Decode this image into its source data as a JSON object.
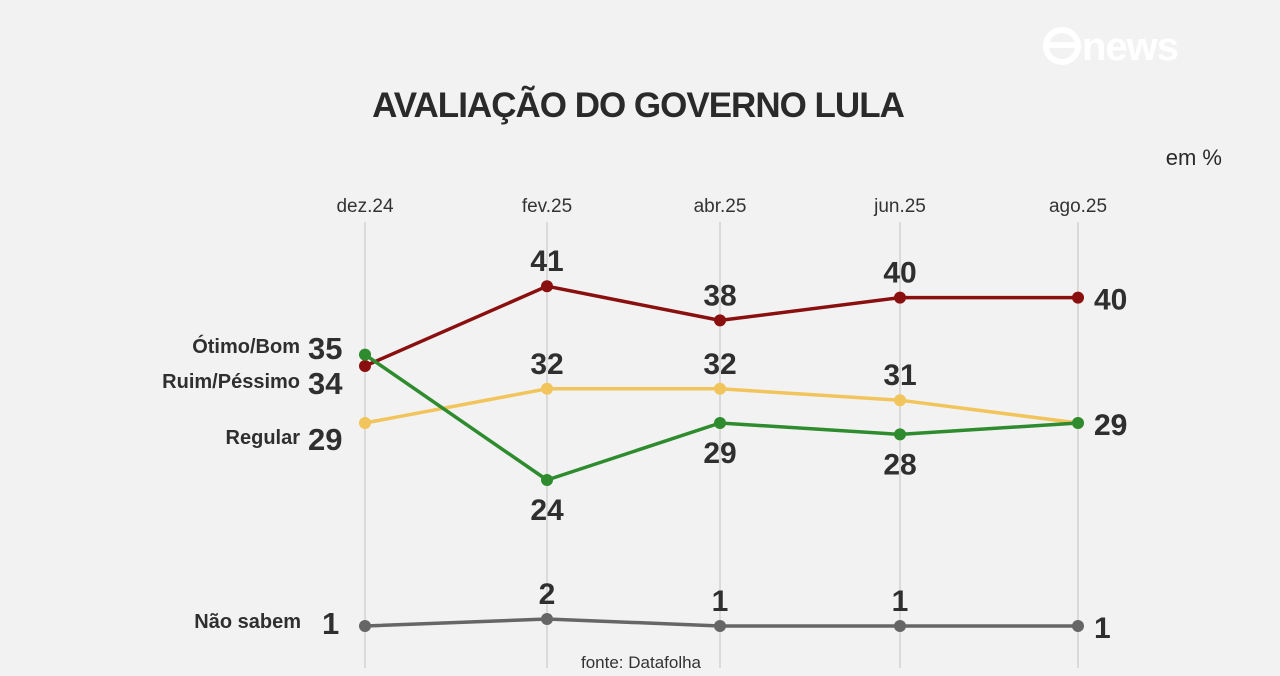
{
  "brand": "news",
  "source": "fonte: Datafolha",
  "chart_data": {
    "type": "line",
    "title": "AVALIAÇÃO DO GOVERNO LULA",
    "unit": "em %",
    "categories": [
      "dez.24",
      "fev.25",
      "abr.25",
      "jun.25",
      "ago.25"
    ],
    "ylim": [
      0,
      45
    ],
    "grid": "vertical",
    "series": [
      {
        "name": "Ruim/Péssimo",
        "color": "#8a1010",
        "values": [
          34,
          41,
          38,
          40,
          40
        ]
      },
      {
        "name": "Regular",
        "color": "#f2c55c",
        "values": [
          29,
          32,
          32,
          31,
          29
        ]
      },
      {
        "name": "Ótimo/Bom",
        "color": "#2e8b2e",
        "values": [
          35,
          24,
          29,
          28,
          29
        ]
      },
      {
        "name": "Não sabem",
        "color": "#666666",
        "values": [
          1,
          2,
          1,
          1,
          1
        ]
      }
    ]
  }
}
